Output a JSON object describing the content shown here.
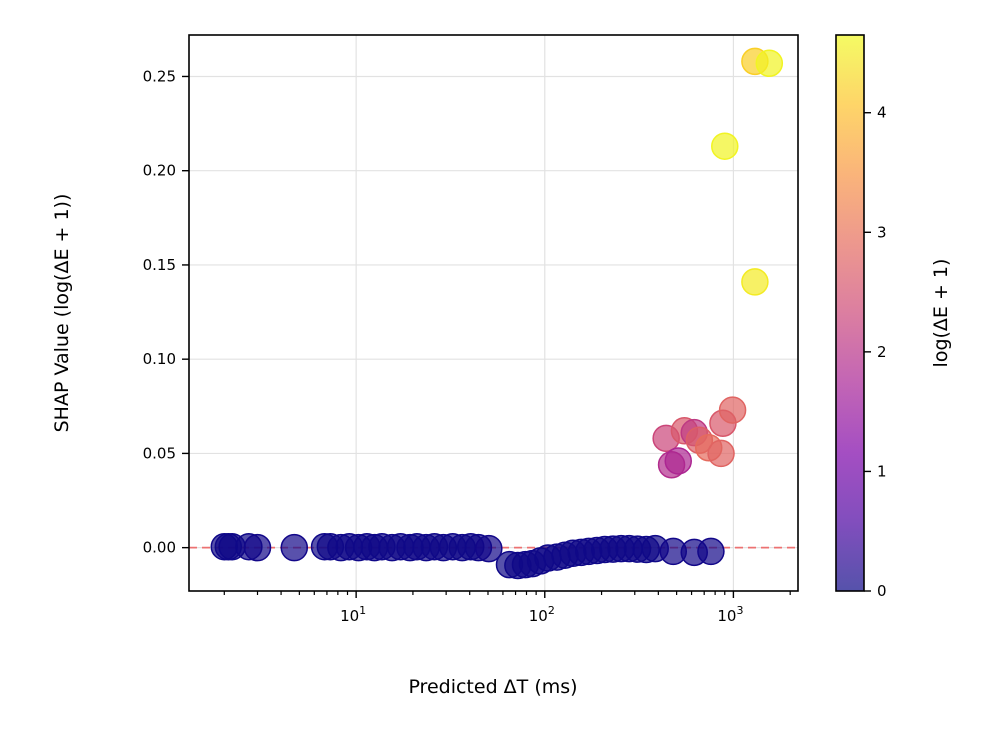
{
  "chart_data": {
    "type": "scatter",
    "xlabel": "Predicted ΔT (ms)",
    "ylabel": "SHAP Value (log(ΔE + 1))",
    "x_scale": "log",
    "xlim": [
      1.3,
      2200
    ],
    "ylim": [
      -0.023,
      0.272
    ],
    "x_ticks": [
      {
        "value": 10,
        "base": "10",
        "exp": "1"
      },
      {
        "value": 100,
        "base": "10",
        "exp": "2"
      },
      {
        "value": 1000,
        "base": "10",
        "exp": "3"
      }
    ],
    "y_ticks": [
      {
        "value": 0.0,
        "label": "0.00"
      },
      {
        "value": 0.05,
        "label": "0.05"
      },
      {
        "value": 0.1,
        "label": "0.10"
      },
      {
        "value": 0.15,
        "label": "0.15"
      },
      {
        "value": 0.2,
        "label": "0.20"
      },
      {
        "value": 0.25,
        "label": "0.25"
      }
    ],
    "grid": true,
    "reference_line": {
      "y": 0,
      "color": "#ee6666",
      "style": "dashed"
    },
    "colormap": "plasma",
    "colorbar": {
      "label": "log(ΔE + 1)",
      "range": [
        0,
        4.65
      ],
      "ticks": [
        {
          "value": 0,
          "label": "0"
        },
        {
          "value": 1,
          "label": "1"
        },
        {
          "value": 2,
          "label": "2"
        },
        {
          "value": 3,
          "label": "3"
        },
        {
          "value": 4,
          "label": "4"
        }
      ]
    },
    "points": [
      {
        "x": 2.0,
        "y": 0.0005,
        "c": 0.02
      },
      {
        "x": 2.1,
        "y": 0.0005,
        "c": 0.02
      },
      {
        "x": 2.2,
        "y": 0.0005,
        "c": 0.02
      },
      {
        "x": 2.7,
        "y": 0.0005,
        "c": 0.02
      },
      {
        "x": 3.0,
        "y": 0.0,
        "c": 0.05
      },
      {
        "x": 4.7,
        "y": 0.0,
        "c": 0.05
      },
      {
        "x": 6.8,
        "y": 0.0005,
        "c": 0.02
      },
      {
        "x": 7.3,
        "y": 0.0005,
        "c": 0.02
      },
      {
        "x": 8.3,
        "y": 0.0,
        "c": 0.02
      },
      {
        "x": 9.2,
        "y": 0.0005,
        "c": 0.02
      },
      {
        "x": 10.3,
        "y": 0.0,
        "c": 0.02
      },
      {
        "x": 11.4,
        "y": 0.0005,
        "c": 0.02
      },
      {
        "x": 12.5,
        "y": 0.0,
        "c": 0.02
      },
      {
        "x": 13.7,
        "y": 0.0005,
        "c": 0.02
      },
      {
        "x": 15.5,
        "y": 0.0,
        "c": 0.02
      },
      {
        "x": 17.2,
        "y": 0.0005,
        "c": 0.02
      },
      {
        "x": 19.3,
        "y": 0.0,
        "c": 0.02
      },
      {
        "x": 21.0,
        "y": 0.0005,
        "c": 0.02
      },
      {
        "x": 23.5,
        "y": 0.0,
        "c": 0.02
      },
      {
        "x": 26.0,
        "y": 0.0005,
        "c": 0.02
      },
      {
        "x": 29.0,
        "y": 0.0,
        "c": 0.02
      },
      {
        "x": 32.5,
        "y": 0.0005,
        "c": 0.02
      },
      {
        "x": 36.5,
        "y": 0.0,
        "c": 0.02
      },
      {
        "x": 40.5,
        "y": 0.0005,
        "c": 0.02
      },
      {
        "x": 44.5,
        "y": 0.0,
        "c": 0.02
      },
      {
        "x": 50.5,
        "y": -0.0005,
        "c": 0.05
      },
      {
        "x": 65.0,
        "y": -0.009,
        "c": 0.02
      },
      {
        "x": 72.0,
        "y": -0.0095,
        "c": 0.02
      },
      {
        "x": 79.0,
        "y": -0.009,
        "c": 0.02
      },
      {
        "x": 86.0,
        "y": -0.0085,
        "c": 0.02
      },
      {
        "x": 95.0,
        "y": -0.007,
        "c": 0.02
      },
      {
        "x": 104.0,
        "y": -0.0055,
        "c": 0.02
      },
      {
        "x": 116.0,
        "y": -0.005,
        "c": 0.02
      },
      {
        "x": 128.0,
        "y": -0.004,
        "c": 0.02
      },
      {
        "x": 141.0,
        "y": -0.003,
        "c": 0.02
      },
      {
        "x": 156.0,
        "y": -0.0025,
        "c": 0.02
      },
      {
        "x": 171.0,
        "y": -0.002,
        "c": 0.02
      },
      {
        "x": 189.0,
        "y": -0.0015,
        "c": 0.02
      },
      {
        "x": 208.0,
        "y": -0.001,
        "c": 0.02
      },
      {
        "x": 230.0,
        "y": -0.0008,
        "c": 0.02
      },
      {
        "x": 254.0,
        "y": -0.0005,
        "c": 0.02
      },
      {
        "x": 280.0,
        "y": -0.0005,
        "c": 0.02
      },
      {
        "x": 310.0,
        "y": -0.0008,
        "c": 0.02
      },
      {
        "x": 345.0,
        "y": -0.001,
        "c": 0.02
      },
      {
        "x": 385.0,
        "y": -0.0005,
        "c": 0.02
      },
      {
        "x": 480.0,
        "y": -0.002,
        "c": 0.05
      },
      {
        "x": 620.0,
        "y": -0.0025,
        "c": 0.05
      },
      {
        "x": 760.0,
        "y": -0.002,
        "c": 0.05
      },
      {
        "x": 440.0,
        "y": 0.058,
        "c": 2.3
      },
      {
        "x": 470.0,
        "y": 0.044,
        "c": 1.9
      },
      {
        "x": 510.0,
        "y": 0.046,
        "c": 1.8
      },
      {
        "x": 550.0,
        "y": 0.062,
        "c": 2.6
      },
      {
        "x": 620.0,
        "y": 0.061,
        "c": 2.1
      },
      {
        "x": 660.0,
        "y": 0.057,
        "c": 2.7
      },
      {
        "x": 740.0,
        "y": 0.053,
        "c": 2.9
      },
      {
        "x": 860.0,
        "y": 0.05,
        "c": 2.8
      },
      {
        "x": 880.0,
        "y": 0.066,
        "c": 2.6
      },
      {
        "x": 990.0,
        "y": 0.073,
        "c": 2.8
      },
      {
        "x": 900.0,
        "y": 0.213,
        "c": 4.6
      },
      {
        "x": 1300.0,
        "y": 0.141,
        "c": 4.5
      },
      {
        "x": 1300.0,
        "y": 0.258,
        "c": 4.2
      },
      {
        "x": 1550.0,
        "y": 0.257,
        "c": 4.6
      }
    ]
  }
}
